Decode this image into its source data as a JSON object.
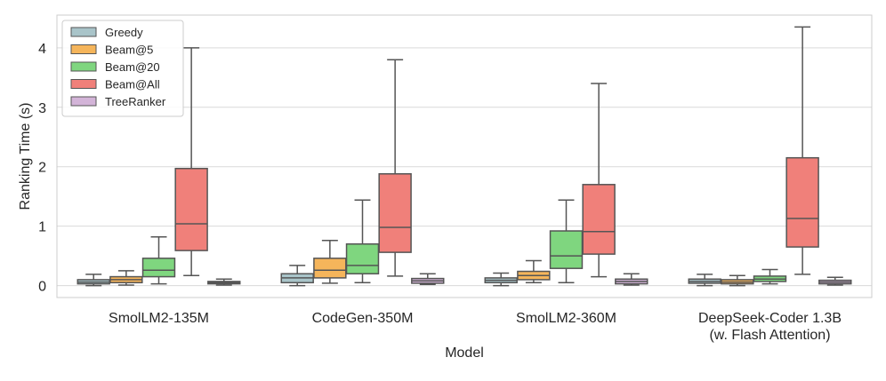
{
  "chart_data": {
    "type": "boxplot",
    "title": "",
    "xlabel": "Model",
    "ylabel": "Ranking Time (s)",
    "ylim": [
      -0.2,
      4.55
    ],
    "yticks": [
      0,
      1,
      2,
      3,
      4
    ],
    "grid": true,
    "legend_position": "top-left",
    "categories": [
      {
        "lines": [
          "SmolLM2-135M"
        ]
      },
      {
        "lines": [
          "CodeGen-350M"
        ]
      },
      {
        "lines": [
          "SmolLM2-360M"
        ]
      },
      {
        "lines": [
          "DeepSeek-Coder 1.3B",
          "(w. Flash Attention)"
        ]
      }
    ],
    "series": [
      {
        "name": "Greedy",
        "color": "#a9c4c9",
        "boxes": [
          {
            "whislo": 0.0,
            "q1": 0.03,
            "med": 0.06,
            "q3": 0.1,
            "whishi": 0.19
          },
          {
            "whislo": 0.0,
            "q1": 0.05,
            "med": 0.13,
            "q3": 0.2,
            "whishi": 0.34
          },
          {
            "whislo": 0.0,
            "q1": 0.05,
            "med": 0.09,
            "q3": 0.13,
            "whishi": 0.21
          },
          {
            "whislo": 0.0,
            "q1": 0.04,
            "med": 0.07,
            "q3": 0.11,
            "whishi": 0.19
          }
        ]
      },
      {
        "name": "Beam@5",
        "color": "#f5b55b",
        "boxes": [
          {
            "whislo": 0.01,
            "q1": 0.05,
            "med": 0.1,
            "q3": 0.15,
            "whishi": 0.25
          },
          {
            "whislo": 0.04,
            "q1": 0.13,
            "med": 0.26,
            "q3": 0.46,
            "whishi": 0.76
          },
          {
            "whislo": 0.05,
            "q1": 0.1,
            "med": 0.17,
            "q3": 0.24,
            "whishi": 0.42
          },
          {
            "whislo": 0.0,
            "q1": 0.03,
            "med": 0.06,
            "q3": 0.1,
            "whishi": 0.17
          }
        ]
      },
      {
        "name": "Beam@20",
        "color": "#7fd67f",
        "boxes": [
          {
            "whislo": 0.03,
            "q1": 0.15,
            "med": 0.26,
            "q3": 0.46,
            "whishi": 0.82
          },
          {
            "whislo": 0.05,
            "q1": 0.2,
            "med": 0.34,
            "q3": 0.7,
            "whishi": 1.44
          },
          {
            "whislo": 0.05,
            "q1": 0.29,
            "med": 0.5,
            "q3": 0.92,
            "whishi": 1.44
          },
          {
            "whislo": 0.03,
            "q1": 0.07,
            "med": 0.11,
            "q3": 0.16,
            "whishi": 0.27
          }
        ]
      },
      {
        "name": "Beam@All",
        "color": "#f0807a",
        "boxes": [
          {
            "whislo": 0.17,
            "q1": 0.59,
            "med": 1.04,
            "q3": 1.97,
            "whishi": 4.0
          },
          {
            "whislo": 0.16,
            "q1": 0.56,
            "med": 0.98,
            "q3": 1.88,
            "whishi": 3.8
          },
          {
            "whislo": 0.15,
            "q1": 0.53,
            "med": 0.91,
            "q3": 1.7,
            "whishi": 3.4
          },
          {
            "whislo": 0.19,
            "q1": 0.65,
            "med": 1.13,
            "q3": 2.15,
            "whishi": 4.35
          }
        ]
      },
      {
        "name": "TreeRanker",
        "color": "#d3b4d8",
        "boxes": [
          {
            "whislo": 0.01,
            "q1": 0.03,
            "med": 0.05,
            "q3": 0.07,
            "whishi": 0.11
          },
          {
            "whislo": 0.02,
            "q1": 0.04,
            "med": 0.08,
            "q3": 0.12,
            "whishi": 0.2
          },
          {
            "whislo": 0.01,
            "q1": 0.03,
            "med": 0.07,
            "q3": 0.11,
            "whishi": 0.2
          },
          {
            "whislo": 0.01,
            "q1": 0.03,
            "med": 0.06,
            "q3": 0.09,
            "whishi": 0.14
          }
        ]
      }
    ]
  }
}
